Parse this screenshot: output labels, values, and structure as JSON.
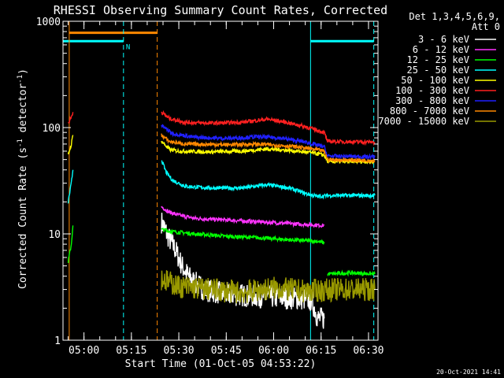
{
  "chart_data": {
    "type": "line",
    "title": "RHESSI Observing Summary Count Rates, Corrected",
    "xlabel": "Start Time (01-Oct-05 04:53:22)",
    "ylabel_main": "Corrected Count Rate (s",
    "ylabel_sup1": "-1",
    "ylabel_mid": " detector",
    "ylabel_sup2": "-1",
    "ylabel_end": ")",
    "yscale": "log",
    "ylim": [
      1,
      1000
    ],
    "xlim": [
      "04:53:22",
      "06:33:00"
    ],
    "x_ticks": [
      "05:00",
      "05:15",
      "05:30",
      "05:45",
      "06:00",
      "06:15",
      "06:30"
    ],
    "y_ticks": [
      "1",
      "10",
      "100",
      "1000"
    ],
    "legend_header": [
      "Det 1,3,4,5,6,9,",
      "Att 0"
    ],
    "legend_placement": "right",
    "timestamp": "20-Oct-2021 14:41",
    "flag_label": "N",
    "series": [
      {
        "name": "3 - 6 keV",
        "color": "#ffffff",
        "segments": [
          [
            [
              "05:24:30",
              13
            ],
            [
              "05:27",
              9
            ],
            [
              "05:29",
              7
            ],
            [
              "05:31",
              5
            ],
            [
              "05:33",
              4
            ],
            [
              "05:35",
              3.5
            ],
            [
              "05:38",
              3
            ],
            [
              "05:45",
              2.7
            ],
            [
              "05:55",
              2.6
            ],
            [
              "06:05",
              2.5
            ],
            [
              "06:12",
              2.4
            ],
            [
              "06:14",
              1.6
            ],
            [
              "06:16",
              1.6
            ]
          ]
        ]
      },
      {
        "name": "6 - 12 keV",
        "color": "#ff33ff",
        "segments": [
          [
            [
              "05:24:30",
              18
            ],
            [
              "05:27",
              16
            ],
            [
              "05:30",
              15
            ],
            [
              "05:35",
              14
            ],
            [
              "05:45",
              13.5
            ],
            [
              "05:55",
              13
            ],
            [
              "06:05",
              12.5
            ],
            [
              "06:16",
              12
            ]
          ]
        ]
      },
      {
        "name": "12 - 25 keV",
        "color": "#00ff00",
        "segments": [
          [
            [
              "04:55",
              5.5
            ],
            [
              "04:56",
              8
            ],
            [
              "04:56:30",
              12
            ]
          ],
          [
            [
              "05:24:30",
              11
            ],
            [
              "05:28",
              10.5
            ],
            [
              "05:35",
              10
            ],
            [
              "05:45",
              9.5
            ],
            [
              "05:55",
              9.2
            ],
            [
              "06:05",
              8.8
            ],
            [
              "06:14",
              8.5
            ],
            [
              "06:16",
              8.2
            ]
          ],
          [
            [
              "06:17",
              4.2
            ],
            [
              "06:25",
              4.3
            ],
            [
              "06:32",
              4.2
            ]
          ]
        ]
      },
      {
        "name": "25 - 50 keV",
        "color": "#00ffff",
        "segments": [
          [
            [
              "04:55",
              20
            ],
            [
              "04:56",
              30
            ],
            [
              "04:56:30",
              40
            ]
          ],
          [
            [
              "05:24:30",
              50
            ],
            [
              "05:26",
              38
            ],
            [
              "05:28",
              32
            ],
            [
              "05:32",
              28
            ],
            [
              "05:40",
              27
            ],
            [
              "05:50",
              27
            ],
            [
              "05:58",
              29
            ],
            [
              "06:05",
              27
            ],
            [
              "06:10",
              24
            ],
            [
              "06:14",
              22.5
            ],
            [
              "06:18",
              23
            ],
            [
              "06:32",
              23
            ]
          ]
        ]
      },
      {
        "name": "50 - 100 keV",
        "color": "#ffff00",
        "segments": [
          [
            [
              "04:55",
              55
            ],
            [
              "04:56",
              70
            ],
            [
              "04:56:30",
              85
            ]
          ],
          [
            [
              "05:24:30",
              75
            ],
            [
              "05:27",
              62
            ],
            [
              "05:30",
              60
            ],
            [
              "05:40",
              59
            ],
            [
              "05:50",
              60
            ],
            [
              "05:58",
              63
            ],
            [
              "06:05",
              61
            ],
            [
              "06:12",
              58
            ],
            [
              "06:16",
              55
            ],
            [
              "06:17",
              48
            ],
            [
              "06:32",
              48
            ]
          ]
        ]
      },
      {
        "name": "100 - 300 keV",
        "color": "#ff2020",
        "segments": [
          [
            [
              "04:55",
              110
            ],
            [
              "04:56",
              125
            ],
            [
              "04:56:30",
              140
            ]
          ],
          [
            [
              "05:24:30",
              140
            ],
            [
              "05:27",
              122
            ],
            [
              "05:32",
              112
            ],
            [
              "05:40",
              110
            ],
            [
              "05:50",
              112
            ],
            [
              "05:58",
              120
            ],
            [
              "06:04",
              112
            ],
            [
              "06:10",
              102
            ],
            [
              "06:14",
              94
            ],
            [
              "06:16",
              90
            ],
            [
              "06:17",
              74
            ],
            [
              "06:32",
              73
            ]
          ]
        ]
      },
      {
        "name": "300 - 800 keV",
        "color": "#2020ff",
        "segments": [
          [
            [
              "05:24:30",
              105
            ],
            [
              "05:28",
              88
            ],
            [
              "05:35",
              81
            ],
            [
              "05:45",
              79
            ],
            [
              "05:55",
              82
            ],
            [
              "06:02",
              80
            ],
            [
              "06:10",
              73
            ],
            [
              "06:16",
              66
            ],
            [
              "06:17",
              54
            ],
            [
              "06:32",
              53
            ]
          ]
        ]
      },
      {
        "name": "800 - 7000 keV",
        "color": "#ff8800",
        "segments": [
          [
            [
              "05:24:30",
              85
            ],
            [
              "05:27",
              74
            ],
            [
              "05:32",
              70
            ],
            [
              "05:45",
              69
            ],
            [
              "05:55",
              70
            ],
            [
              "06:05",
              67
            ],
            [
              "06:12",
              63
            ],
            [
              "06:16",
              60
            ],
            [
              "06:17",
              50
            ],
            [
              "06:32",
              49
            ]
          ]
        ]
      },
      {
        "name": "7000 - 15000 keV",
        "color": "#999900",
        "segments": [
          [
            [
              "05:24:30",
              3.8
            ],
            [
              "05:30",
              3.2
            ],
            [
              "05:40",
              3.0
            ],
            [
              "05:50",
              2.8
            ],
            [
              "06:00",
              3.1
            ],
            [
              "06:10",
              2.9
            ],
            [
              "06:20",
              3.0
            ],
            [
              "06:32",
              3.0
            ]
          ]
        ]
      }
    ],
    "markers": [
      {
        "kind": "saa",
        "color": "#00ffff",
        "level": 650,
        "bars": [
          [
            "04:53:22",
            "05:12:30"
          ],
          [
            "06:11:40",
            "06:31:40"
          ]
        ]
      },
      {
        "kind": "night",
        "color": "#ff8800",
        "level": 780,
        "bars": [
          [
            "04:55:20",
            "05:23:10"
          ]
        ]
      },
      {
        "kind": "vline",
        "color": "#00ffff",
        "dashed": false,
        "times": [
          "04:53:22",
          "06:11:40"
        ]
      },
      {
        "kind": "vline",
        "color": "#00ffff",
        "dashed": true,
        "times": [
          "05:12:30",
          "06:31:40"
        ]
      },
      {
        "kind": "vline",
        "color": "#ff8800",
        "dashed": false,
        "times": [
          "04:55:20"
        ]
      },
      {
        "kind": "vline",
        "color": "#ff8800",
        "dashed": true,
        "times": [
          "05:23:10"
        ]
      }
    ]
  }
}
